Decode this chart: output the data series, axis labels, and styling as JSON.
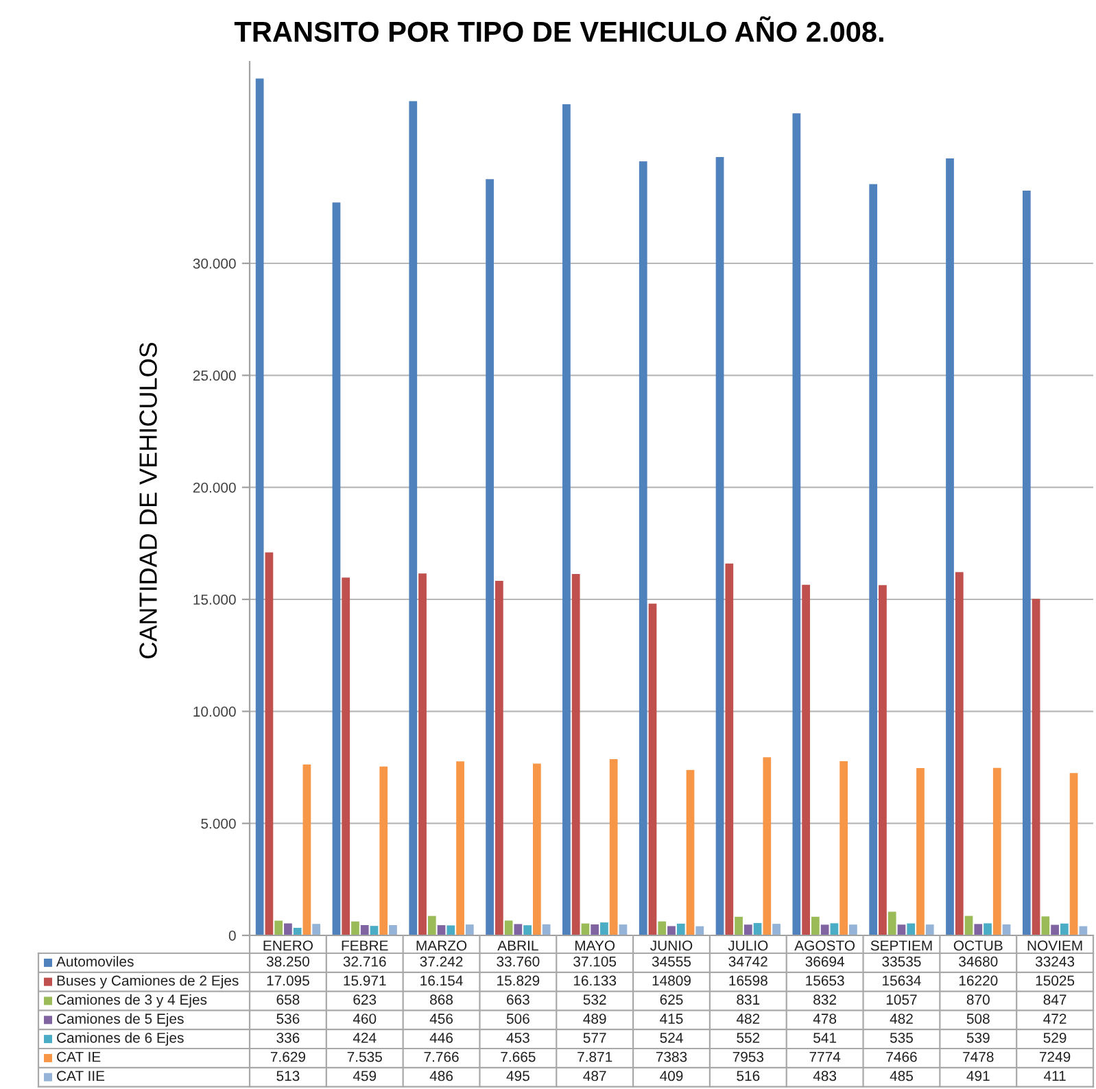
{
  "chart_data": {
    "type": "bar",
    "title": "TRANSITO POR TIPO DE VEHICULO AÑO 2.008.",
    "ylabel": "CANTIDAD DE VEHICULOS",
    "categories": [
      "ENERO",
      "FEBRE",
      "MARZO",
      "ABRIL",
      "MAYO",
      "JUNIO",
      "JULIO",
      "AGOSTO",
      "SEPTIEM",
      "OCTUB",
      "NOVIEM"
    ],
    "series": [
      {
        "name": "Automoviles",
        "color": "#4f81bd",
        "values": [
          38250,
          32716,
          37242,
          33760,
          37105,
          34555,
          34742,
          36694,
          33535,
          34680,
          33243
        ],
        "value_labels": [
          "38.250",
          "32.716",
          "37.242",
          "33.760",
          "37.105",
          "34555",
          "34742",
          "36694",
          "33535",
          "34680",
          "33243"
        ]
      },
      {
        "name": "Buses y Camiones de 2 Ejes",
        "color": "#c0504d",
        "values": [
          17095,
          15971,
          16154,
          15829,
          16133,
          14809,
          16598,
          15653,
          15634,
          16220,
          15025
        ],
        "value_labels": [
          "17.095",
          "15.971",
          "16.154",
          "15.829",
          "16.133",
          "14809",
          "16598",
          "15653",
          "15634",
          "16220",
          "15025"
        ]
      },
      {
        "name": "Camiones de 3 y 4 Ejes",
        "color": "#9bbb59",
        "values": [
          658,
          623,
          868,
          663,
          532,
          625,
          831,
          832,
          1057,
          870,
          847
        ],
        "value_labels": [
          "658",
          "623",
          "868",
          "663",
          "532",
          "625",
          "831",
          "832",
          "1057",
          "870",
          "847"
        ]
      },
      {
        "name": "Camiones de 5 Ejes",
        "color": "#8064a2",
        "values": [
          536,
          460,
          456,
          506,
          489,
          415,
          482,
          478,
          482,
          508,
          472
        ],
        "value_labels": [
          "536",
          "460",
          "456",
          "506",
          "489",
          "415",
          "482",
          "478",
          "482",
          "508",
          "472"
        ]
      },
      {
        "name": "Camiones de 6 Ejes",
        "color": "#4bacc6",
        "values": [
          336,
          424,
          446,
          453,
          577,
          524,
          552,
          541,
          535,
          539,
          529
        ],
        "value_labels": [
          "336",
          "424",
          "446",
          "453",
          "577",
          "524",
          "552",
          "541",
          "535",
          "539",
          "529"
        ]
      },
      {
        "name": "CAT IE",
        "color": "#f79646",
        "values": [
          7629,
          7535,
          7766,
          7665,
          7871,
          7383,
          7953,
          7774,
          7466,
          7478,
          7249
        ],
        "value_labels": [
          "7.629",
          "7.535",
          "7.766",
          "7.665",
          "7.871",
          "7383",
          "7953",
          "7774",
          "7466",
          "7478",
          "7249"
        ]
      },
      {
        "name": "CAT IIE",
        "color": "#95b3d7",
        "values": [
          513,
          459,
          486,
          495,
          487,
          409,
          516,
          483,
          485,
          491,
          411
        ],
        "value_labels": [
          "513",
          "459",
          "486",
          "495",
          "487",
          "409",
          "516",
          "483",
          "485",
          "491",
          "411"
        ]
      }
    ],
    "ylim": [
      0,
      39000
    ],
    "yticks": [
      0,
      {
        "value": 5000,
        "label": "5.000"
      },
      {
        "value": 10000,
        "label": "10.000"
      },
      {
        "value": 15000,
        "label": "15.000"
      },
      {
        "value": 20000,
        "label": "20.000"
      },
      {
        "value": 25000,
        "label": "25.000"
      },
      {
        "value": 30000,
        "label": "30.000"
      }
    ],
    "grid": "y",
    "legend": "bottom"
  }
}
